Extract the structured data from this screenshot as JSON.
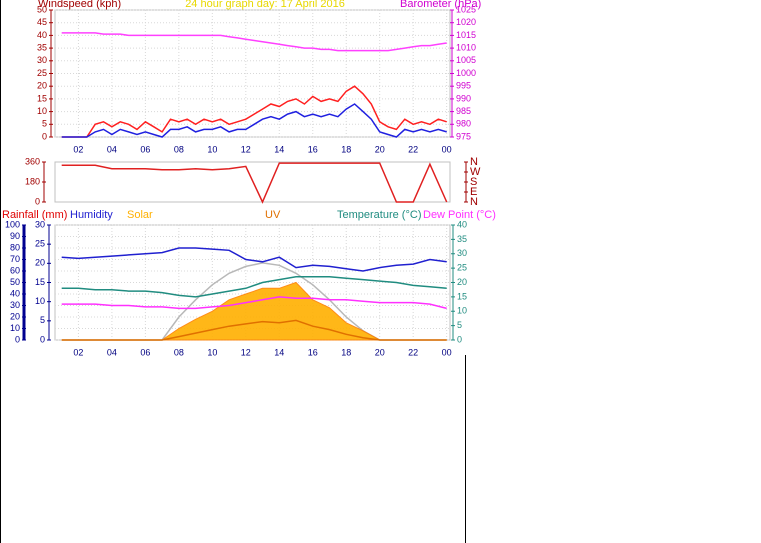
{
  "chart_data": [
    {
      "type": "line",
      "title": "24 hour graph day: 17 April 2016",
      "ylabel": "Windspeed (kph)",
      "y2label": "Barometer (hPa)",
      "xlim": [
        0.6,
        24.2
      ],
      "xticks": [
        {
          "value": 2,
          "label": "02"
        },
        {
          "value": 4,
          "label": "04"
        },
        {
          "value": 6,
          "label": "06"
        },
        {
          "value": 8,
          "label": "08"
        },
        10,
        12,
        14,
        16,
        18,
        20,
        22,
        {
          "value": 24,
          "label": "00"
        }
      ],
      "ylim": [
        0,
        50
      ],
      "yticks": [
        0,
        5,
        10,
        15,
        20,
        25,
        30,
        35,
        40,
        45,
        50
      ],
      "y2lim": [
        975,
        1025
      ],
      "y2ticks": [
        975,
        980,
        985,
        990,
        995,
        1000,
        1005,
        1010,
        1015,
        1020,
        1025
      ],
      "grid": true,
      "x": [
        1,
        1.5,
        2,
        2.5,
        3,
        3.5,
        4,
        4.5,
        5,
        5.5,
        6,
        6.5,
        7,
        7.5,
        8,
        8.5,
        9,
        9.5,
        10,
        10.5,
        11,
        11.5,
        12,
        12.5,
        13,
        13.5,
        14,
        14.5,
        15,
        15.5,
        16,
        16.5,
        17,
        17.5,
        18,
        18.5,
        19,
        19.5,
        20,
        20.5,
        21,
        21.5,
        22,
        22.5,
        23,
        23.5,
        24
      ],
      "series": [
        {
          "color": "#ff2020",
          "values": [
            0,
            0,
            0,
            0,
            5,
            6,
            4,
            6,
            5,
            3,
            6,
            4,
            2,
            7,
            6,
            7,
            5,
            7,
            6,
            7,
            5,
            6,
            7,
            9,
            11,
            13,
            12,
            14,
            15,
            13,
            16,
            14,
            15,
            14,
            18,
            20,
            17,
            13,
            6,
            4,
            3,
            7,
            5,
            6,
            5,
            7,
            6
          ]
        },
        {
          "color": "#2020e0",
          "values": [
            0,
            0,
            0,
            0,
            2,
            3,
            1,
            3,
            2,
            1,
            2,
            1,
            0,
            3,
            3,
            4,
            2,
            3,
            3,
            4,
            2,
            3,
            3,
            5,
            7,
            8,
            7,
            9,
            10,
            8,
            9,
            8,
            9,
            8,
            11,
            13,
            10,
            7,
            2,
            1,
            0,
            3,
            2,
            3,
            2,
            3,
            2
          ]
        },
        {
          "color": "#ff40ff",
          "axis": "y2",
          "values": [
            1016,
            1016,
            1016,
            1016,
            1016,
            1015.5,
            1015.5,
            1015.5,
            1015,
            1015,
            1015,
            1015,
            1015,
            1015,
            1015,
            1015,
            1015,
            1015,
            1015,
            1015,
            1014.5,
            1014,
            1013.5,
            1013,
            1012.5,
            1012,
            1011.5,
            1011,
            1010.5,
            1010,
            1010,
            1009.5,
            1009.5,
            1009,
            1009,
            1009,
            1009,
            1009,
            1009,
            1009,
            1009.5,
            1010,
            1010.5,
            1011,
            1011,
            1011.5,
            1012
          ]
        }
      ]
    },
    {
      "type": "line",
      "xlim": [
        0.6,
        24.2
      ],
      "ylim": [
        0,
        360
      ],
      "yticks": [
        0,
        180,
        360
      ],
      "y2lim": [
        0,
        360
      ],
      "y2ticks": [
        {
          "value": 360,
          "label": "N"
        },
        {
          "value": 270,
          "label": "W"
        },
        {
          "value": 180,
          "label": "S"
        },
        {
          "value": 90,
          "label": "E"
        },
        {
          "value": 0,
          "label": "N"
        }
      ],
      "x": [
        1,
        2,
        3,
        4,
        5,
        6,
        7,
        8,
        9,
        10,
        11,
        12,
        13,
        14,
        15,
        16,
        17,
        18,
        19,
        20,
        21,
        22,
        23,
        24
      ],
      "series": [
        {
          "color": "#e02020",
          "values": [
            330,
            330,
            330,
            300,
            300,
            300,
            290,
            290,
            300,
            290,
            300,
            320,
            0,
            350,
            350,
            350,
            350,
            350,
            350,
            350,
            0,
            0,
            340,
            0
          ]
        }
      ]
    },
    {
      "type": "line",
      "ylabel": "Rainfall (mm)",
      "xlim": [
        0.6,
        24.2
      ],
      "xticks": [
        {
          "value": 2,
          "label": "02"
        },
        {
          "value": 4,
          "label": "04"
        },
        {
          "value": 6,
          "label": "06"
        },
        {
          "value": 8,
          "label": "08"
        },
        10,
        12,
        14,
        16,
        18,
        20,
        22,
        {
          "value": 24,
          "label": "00"
        }
      ],
      "ylim": [
        0,
        100
      ],
      "yticks": [
        0,
        10,
        20,
        30,
        40,
        50,
        60,
        70,
        80,
        90,
        100
      ],
      "y3lim": [
        0,
        30
      ],
      "y3ticks": [
        0,
        5,
        10,
        15,
        20,
        25,
        30
      ],
      "y2lim": [
        0,
        40
      ],
      "y2ticks": [
        0,
        5,
        10,
        15,
        20,
        25,
        30,
        35,
        40
      ],
      "grid": true,
      "x": [
        1,
        2,
        3,
        4,
        5,
        6,
        7,
        8,
        9,
        10,
        11,
        12,
        13,
        14,
        15,
        16,
        17,
        18,
        19,
        20,
        21,
        22,
        23,
        24
      ],
      "series": [
        {
          "color": "#b8b8b8",
          "values": [
            0,
            0,
            0,
            0,
            0,
            0,
            0,
            20,
            35,
            48,
            58,
            64,
            67,
            65,
            58,
            48,
            35,
            20,
            8,
            0,
            0,
            0,
            0,
            0
          ]
        },
        {
          "name": "Solar",
          "color": "#ffb000",
          "fill": true,
          "values": [
            0,
            0,
            0,
            0,
            0,
            0,
            0,
            10,
            18,
            25,
            35,
            40,
            45,
            45,
            50,
            35,
            28,
            15,
            8,
            0,
            0,
            0,
            0,
            0
          ]
        },
        {
          "name": "UV",
          "color": "#e07000",
          "values": [
            0,
            0,
            0,
            0,
            0,
            0,
            0,
            3,
            6,
            9,
            12,
            14,
            16,
            15,
            17,
            12,
            9,
            5,
            2,
            0,
            0,
            0,
            0,
            0
          ]
        },
        {
          "name": "Humidity",
          "color": "#2020d0",
          "values": [
            72,
            71,
            72,
            73,
            74,
            75,
            76,
            80,
            80,
            79,
            78,
            70,
            68,
            72,
            63,
            65,
            64,
            62,
            60,
            63,
            65,
            66,
            70,
            68
          ]
        },
        {
          "name": "Temperature (°C)",
          "color": "#208c80",
          "axis": "y2",
          "values": [
            18,
            18,
            17.5,
            17.5,
            17,
            17,
            16.5,
            15.5,
            15,
            16,
            17,
            18,
            20,
            21,
            22,
            22,
            22,
            21.5,
            21,
            20.5,
            20,
            19,
            18.5,
            18
          ]
        },
        {
          "name": "Dew Point (°C)",
          "color": "#ff30ff",
          "axis": "y2",
          "values": [
            12.5,
            12.5,
            12.5,
            12,
            12,
            11.5,
            11.5,
            11,
            11,
            11.5,
            12,
            13,
            14,
            15,
            14.5,
            14.5,
            14,
            14,
            13.5,
            13,
            13,
            13,
            12.5,
            11
          ]
        }
      ]
    }
  ]
}
